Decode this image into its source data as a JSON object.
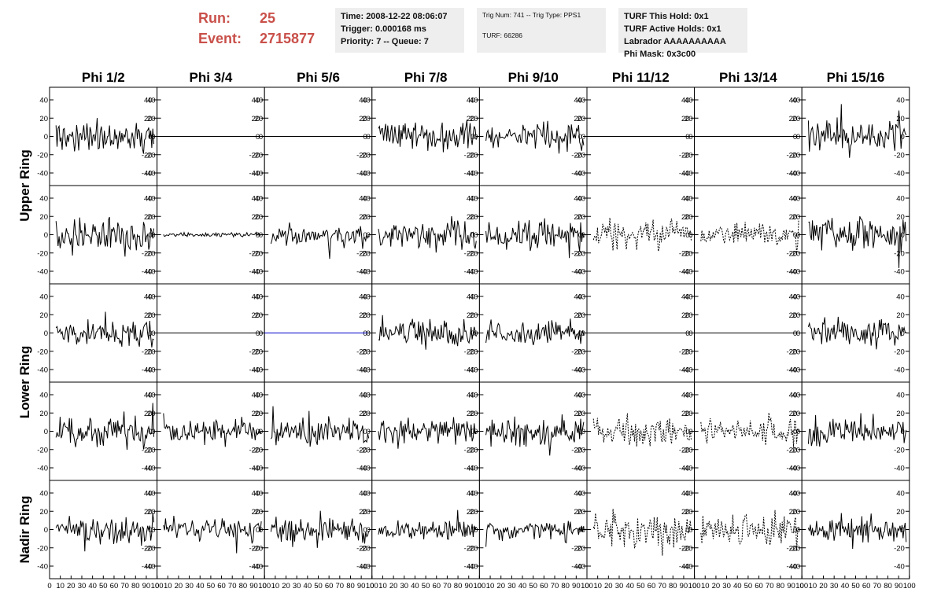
{
  "header": {
    "run_label": "Run:",
    "run_value": "25",
    "event_label": "Event:",
    "event_value": "2715877",
    "time": "Time: 2008-12-22 08:06:07",
    "trigger": "Trigger: 0.000168 ms",
    "priority": "Priority: 7 -- Queue: 7",
    "trig_num": "Trig Num: 741 -- Trig Type: PPS1",
    "turf": "TURF: 66286",
    "turf_this_hold": "TURF This Hold: 0x1",
    "turf_active_holds": "TURF Active Holds: 0x1",
    "labrador": "Labrador AAAAAAAAAA",
    "phi_mask": "Phi Mask: 0x3c00"
  },
  "colors": {
    "run_text": "#c9504a",
    "info_bg": "#eeeeee",
    "trace": "#000000",
    "flat_highlight": "#0000cc"
  },
  "chart_data": {
    "type": "line",
    "columns": [
      "Phi 1/2",
      "Phi 3/4",
      "Phi 5/6",
      "Phi 7/8",
      "Phi 9/10",
      "Phi 11/12",
      "Phi 13/14",
      "Phi 15/16"
    ],
    "ring_labels": [
      {
        "name": "Upper Ring",
        "rows": [
          0,
          1
        ]
      },
      {
        "name": "Lower Ring",
        "rows": [
          2,
          3
        ]
      },
      {
        "name": "Nadir Ring",
        "rows": [
          4
        ]
      }
    ],
    "ylim": [
      -50,
      50
    ],
    "yticks": [
      -40,
      -20,
      0,
      20,
      40
    ],
    "xlim": [
      0,
      100
    ],
    "xticks": [
      0,
      10,
      20,
      30,
      40,
      50,
      60,
      70,
      80,
      90,
      100
    ],
    "trace_samples": 96,
    "panels": [
      [
        {
          "style": "solid",
          "amp": 14
        },
        {
          "style": "flat"
        },
        {
          "style": "flat"
        },
        {
          "style": "solid",
          "amp": 14
        },
        {
          "style": "solid",
          "amp": 14
        },
        {
          "style": "flat"
        },
        {
          "style": "flat"
        },
        {
          "style": "solid",
          "amp": 15
        }
      ],
      [
        {
          "style": "solid",
          "amp": 18
        },
        {
          "style": "solid",
          "amp": 2
        },
        {
          "style": "solid",
          "amp": 11
        },
        {
          "style": "solid",
          "amp": 15
        },
        {
          "style": "solid",
          "amp": 15
        },
        {
          "style": "dotted",
          "amp": 14
        },
        {
          "style": "dotted",
          "amp": 11
        },
        {
          "style": "solid",
          "amp": 18
        }
      ],
      [
        {
          "style": "solid",
          "amp": 12
        },
        {
          "style": "flat"
        },
        {
          "style": "flat",
          "color": "blue"
        },
        {
          "style": "solid",
          "amp": 15
        },
        {
          "style": "solid",
          "amp": 12
        },
        {
          "style": "flat"
        },
        {
          "style": "flat"
        },
        {
          "style": "solid",
          "amp": 14
        }
      ],
      [
        {
          "style": "solid",
          "amp": 15
        },
        {
          "style": "solid",
          "amp": 13
        },
        {
          "style": "solid",
          "amp": 13
        },
        {
          "style": "solid",
          "amp": 14
        },
        {
          "style": "solid",
          "amp": 14
        },
        {
          "style": "dotted",
          "amp": 15
        },
        {
          "style": "dotted",
          "amp": 12
        },
        {
          "style": "solid",
          "amp": 16
        }
      ],
      [
        {
          "style": "solid",
          "amp": 13
        },
        {
          "style": "solid",
          "amp": 12
        },
        {
          "style": "solid",
          "amp": 12
        },
        {
          "style": "solid",
          "amp": 10
        },
        {
          "style": "solid",
          "amp": 11
        },
        {
          "style": "dotted",
          "amp": 16
        },
        {
          "style": "dotted",
          "amp": 15
        },
        {
          "style": "solid",
          "amp": 13
        }
      ]
    ]
  }
}
